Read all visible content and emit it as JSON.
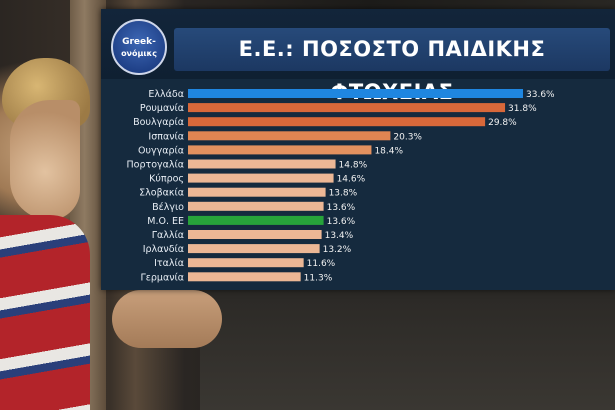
{
  "watermark": "Greek-ονόμικς",
  "logo": {
    "line1": "Greek-",
    "line2": "ονόμικς"
  },
  "colors": {
    "panel": "#152a3e",
    "greece": "#1f86e0",
    "high": "#d8683a",
    "mid": "#e3915f",
    "low": "#ecb795",
    "eu_avg": "#27a33a"
  },
  "chart_data": {
    "type": "bar",
    "orientation": "horizontal",
    "title": "Ε.Ε.: ΠΟΣΟΣΤΟ ΠΑΙΔΙΚΗΣ ΦΤΩΧΕΙΑΣ",
    "categories": [
      "Ελλάδα",
      "Ρουμανία",
      "Βουλγαρία",
      "Ισπανία",
      "Ουγγαρία",
      "Πορτογαλία",
      "Κύπρος",
      "Σλοβακία",
      "Βέλγιο",
      "Μ.Ο. ΕΕ",
      "Γαλλία",
      "Ιρλανδία",
      "Ιταλία",
      "Γερμανία"
    ],
    "values": [
      33.6,
      31.8,
      29.8,
      20.3,
      18.4,
      14.8,
      14.6,
      13.8,
      13.6,
      13.6,
      13.4,
      13.2,
      11.6,
      11.3
    ],
    "labels": [
      "33.6%",
      "31.8%",
      "29.8%",
      "20.3%",
      "18.4%",
      "14.8%",
      "14.6%",
      "13.8%",
      "13.6%",
      "13.6%",
      "13.4%",
      "13.2%",
      "11.6%",
      "11.3%"
    ],
    "bar_colors": [
      "#1f86e0",
      "#d8683a",
      "#d8683a",
      "#e08552",
      "#e3915f",
      "#ecb795",
      "#ecb795",
      "#ecb795",
      "#ecb795",
      "#27a33a",
      "#ecb795",
      "#ecb795",
      "#ecb795",
      "#ecb795"
    ],
    "xlim": [
      0,
      34
    ],
    "grid": false,
    "legend": "none"
  }
}
